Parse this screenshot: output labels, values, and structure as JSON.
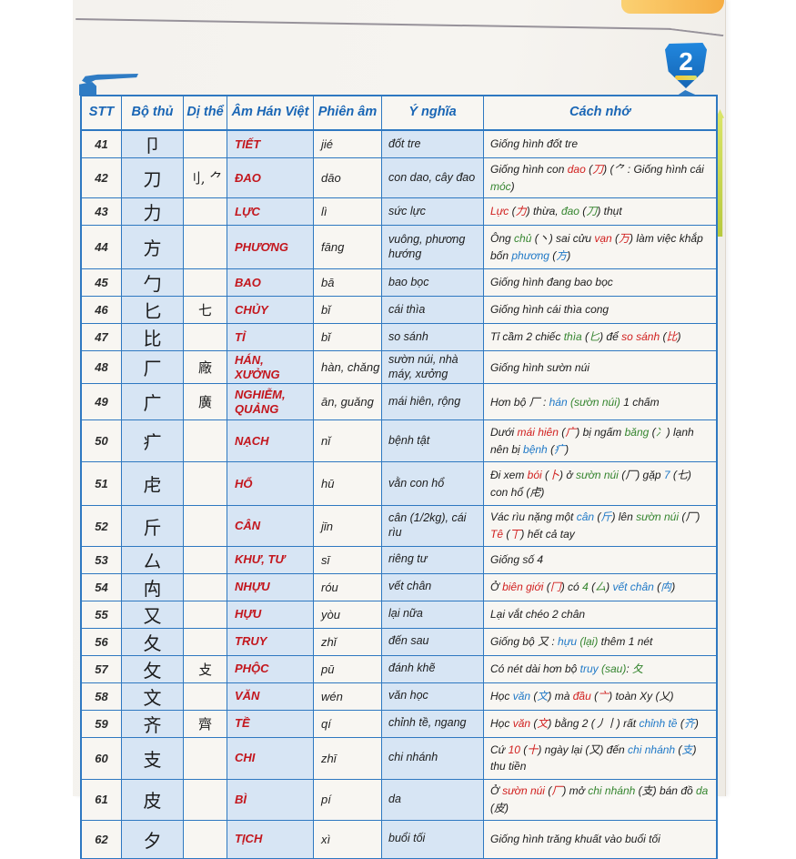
{
  "page": {
    "badge_number": "2",
    "colors": {
      "table_border": "#2e78c1",
      "header_text": "#1a66b5",
      "cell_shade": "#d7e5f4",
      "reading_red": "#c3161d",
      "memo_red": "#d1201f",
      "memo_green": "#35852f",
      "memo_blue": "#2079c7",
      "badge_blue": "#1c7fd6",
      "cover_orange": "#f6ad43",
      "arrow_green": "#b7c93e"
    }
  },
  "table": {
    "headers": [
      "STT",
      "Bộ thủ",
      "Dị thể",
      "Âm Hán Việt",
      "Phiên âm",
      "Ý nghĩa",
      "Cách nhớ"
    ],
    "rows": [
      {
        "stt": "41",
        "radical": "卩",
        "variant": "",
        "am": "TIẾT",
        "pinyin": "jié",
        "meaning": "đốt tre",
        "memo": [
          [
            "k",
            "Giống hình đốt tre"
          ]
        ]
      },
      {
        "stt": "42",
        "radical": "刀",
        "variant": "刂, ⺈",
        "am": "ĐAO",
        "pinyin": "dāo",
        "meaning": "con dao, cây đao",
        "memo": [
          [
            "k",
            "Giống hình con "
          ],
          [
            "r",
            "dao"
          ],
          [
            "k",
            " ("
          ],
          [
            "r",
            "刀"
          ],
          [
            "k",
            ") (⺈ : Giống hình cái "
          ],
          [
            "g",
            "móc"
          ],
          [
            "k",
            ")"
          ]
        ]
      },
      {
        "stt": "43",
        "radical": "力",
        "variant": "",
        "am": "LỰC",
        "pinyin": "lì",
        "meaning": "sức lực",
        "memo": [
          [
            "r",
            "Lực"
          ],
          [
            "k",
            " ("
          ],
          [
            "r",
            "力"
          ],
          [
            "k",
            ") thừa, "
          ],
          [
            "g",
            "đao"
          ],
          [
            "k",
            " ("
          ],
          [
            "g",
            "刀"
          ],
          [
            "k",
            ") thụt"
          ]
        ]
      },
      {
        "stt": "44",
        "radical": "方",
        "variant": "",
        "am": "PHƯƠNG",
        "pinyin": "fāng",
        "meaning": "vuông, phương hướng",
        "memo": [
          [
            "k",
            "Ông "
          ],
          [
            "g",
            "chủ"
          ],
          [
            "k",
            " (丶) sai cửu "
          ],
          [
            "r",
            "vạn"
          ],
          [
            "k",
            " ("
          ],
          [
            "r",
            "万"
          ],
          [
            "k",
            ") làm việc khắp bốn "
          ],
          [
            "b",
            "phương"
          ],
          [
            "k",
            " ("
          ],
          [
            "b",
            "方"
          ],
          [
            "k",
            ")"
          ]
        ]
      },
      {
        "stt": "45",
        "radical": "勹",
        "variant": "",
        "am": "BAO",
        "pinyin": "bā",
        "meaning": "bao bọc",
        "memo": [
          [
            "k",
            "Giống hình đang bao bọc"
          ]
        ]
      },
      {
        "stt": "46",
        "radical": "匕",
        "variant": "七",
        "am": "CHỦY",
        "pinyin": "bǐ",
        "meaning": "cái thìa",
        "memo": [
          [
            "k",
            "Giống hình cái thìa cong"
          ]
        ]
      },
      {
        "stt": "47",
        "radical": "比",
        "variant": "",
        "am": "TỈ",
        "pinyin": "bǐ",
        "meaning": "so sánh",
        "memo": [
          [
            "k",
            "Tỉ cầm 2 chiếc "
          ],
          [
            "g",
            "thìa"
          ],
          [
            "k",
            " ("
          ],
          [
            "g",
            "匕"
          ],
          [
            "k",
            ") để "
          ],
          [
            "r",
            "so sánh"
          ],
          [
            "k",
            " ("
          ],
          [
            "r",
            "比"
          ],
          [
            "k",
            ")"
          ]
        ]
      },
      {
        "stt": "48",
        "radical": "厂",
        "variant": "廠",
        "am": "HÁN, XƯỞNG",
        "pinyin": "hàn, chǎng",
        "meaning": "sườn núi, nhà máy, xưởng",
        "memo": [
          [
            "k",
            "Giống hình sườn núi"
          ]
        ]
      },
      {
        "stt": "49",
        "radical": "广",
        "variant": "廣",
        "am": "NGHIỄM, QUẢNG",
        "pinyin": "ān, guǎng",
        "meaning": "mái hiên, rộng",
        "memo": [
          [
            "k",
            "Hơn bộ 厂 : "
          ],
          [
            "b",
            "hán"
          ],
          [
            "k",
            " "
          ],
          [
            "g",
            "(sườn núi)"
          ],
          [
            "k",
            " 1 chấm"
          ]
        ]
      },
      {
        "stt": "50",
        "radical": "疒",
        "variant": "",
        "am": "NẠCH",
        "pinyin": "nǐ",
        "meaning": "bệnh tật",
        "memo": [
          [
            "k",
            "Dưới "
          ],
          [
            "r",
            "mái hiên"
          ],
          [
            "k",
            " ("
          ],
          [
            "r",
            "广"
          ],
          [
            "k",
            ") bị ngấm "
          ],
          [
            "g",
            "băng"
          ],
          [
            "k",
            " ("
          ],
          [
            "g",
            "冫"
          ],
          [
            "k",
            ") lạnh nên bị "
          ],
          [
            "b",
            "bệnh"
          ],
          [
            "k",
            " ("
          ],
          [
            "b",
            "疒"
          ],
          [
            "k",
            ")"
          ]
        ]
      },
      {
        "stt": "51",
        "radical": "虍",
        "variant": "",
        "am": "HỔ",
        "pinyin": "hū",
        "meaning": "vằn con hổ",
        "memo": [
          [
            "k",
            "Đi xem "
          ],
          [
            "r",
            "bói"
          ],
          [
            "k",
            " ("
          ],
          [
            "r",
            "卜"
          ],
          [
            "k",
            ") ở "
          ],
          [
            "g",
            "sườn núi"
          ],
          [
            "k",
            " (厂) gặp "
          ],
          [
            "b",
            "7"
          ],
          [
            "k",
            " (七) con hổ (虍)"
          ]
        ]
      },
      {
        "stt": "52",
        "radical": "斤",
        "variant": "",
        "am": "CÂN",
        "pinyin": "jīn",
        "meaning": "cân (1/2kg), cái rìu",
        "memo": [
          [
            "k",
            "Vác rìu nặng một "
          ],
          [
            "b",
            "cân"
          ],
          [
            "k",
            " ("
          ],
          [
            "b",
            "斤"
          ],
          [
            "k",
            ") lên "
          ],
          [
            "g",
            "sườn núi"
          ],
          [
            "k",
            " (厂) "
          ],
          [
            "r",
            "Tê"
          ],
          [
            "k",
            " ("
          ],
          [
            "r",
            "丅"
          ],
          [
            "k",
            ") hết cả tay"
          ]
        ]
      },
      {
        "stt": "53",
        "radical": "厶",
        "variant": "",
        "am": "KHƯ, TƯ",
        "pinyin": "sī",
        "meaning": "riêng tư",
        "memo": [
          [
            "k",
            "Giống số 4"
          ]
        ]
      },
      {
        "stt": "54",
        "radical": "禸",
        "variant": "",
        "am": "NHỰU",
        "pinyin": "róu",
        "meaning": "vết chân",
        "memo": [
          [
            "k",
            "Ở "
          ],
          [
            "r",
            "biên giới"
          ],
          [
            "k",
            " ("
          ],
          [
            "r",
            "冂"
          ],
          [
            "k",
            ") có "
          ],
          [
            "g",
            "4"
          ],
          [
            "k",
            " ("
          ],
          [
            "g",
            "厶"
          ],
          [
            "k",
            ") "
          ],
          [
            "b",
            "vết chân"
          ],
          [
            "k",
            " ("
          ],
          [
            "b",
            "禸"
          ],
          [
            "k",
            ")"
          ]
        ]
      },
      {
        "stt": "55",
        "radical": "又",
        "variant": "",
        "am": "HỰU",
        "pinyin": "yòu",
        "meaning": "lại nữa",
        "memo": [
          [
            "k",
            "Lại vắt chéo 2 chân"
          ]
        ]
      },
      {
        "stt": "56",
        "radical": "夂",
        "variant": "",
        "am": "TRUY",
        "pinyin": "zhǐ",
        "meaning": "đến sau",
        "memo": [
          [
            "k",
            "Giống bộ 又 : "
          ],
          [
            "b",
            "hựu"
          ],
          [
            "k",
            " "
          ],
          [
            "g",
            "(lại)"
          ],
          [
            "k",
            " thêm 1 nét"
          ]
        ]
      },
      {
        "stt": "57",
        "radical": "攵",
        "variant": "攴",
        "am": "PHỘC",
        "pinyin": "pū",
        "meaning": "đánh khẽ",
        "memo": [
          [
            "k",
            "Có nét dài hơn bộ "
          ],
          [
            "b",
            "truy"
          ],
          [
            "k",
            " "
          ],
          [
            "g",
            "(sau)"
          ],
          [
            "k",
            ": "
          ],
          [
            "g",
            "夂"
          ]
        ]
      },
      {
        "stt": "58",
        "radical": "文",
        "variant": "",
        "am": "VĂN",
        "pinyin": "wén",
        "meaning": "văn học",
        "memo": [
          [
            "k",
            "Học "
          ],
          [
            "b",
            "văn"
          ],
          [
            "k",
            " ("
          ],
          [
            "b",
            "文"
          ],
          [
            "k",
            ") mà "
          ],
          [
            "r",
            "đầu"
          ],
          [
            "k",
            " ("
          ],
          [
            "r",
            "亠"
          ],
          [
            "k",
            ") toàn Xy (乂)"
          ]
        ]
      },
      {
        "stt": "59",
        "radical": "齐",
        "variant": "齊",
        "am": "TỀ",
        "pinyin": "qí",
        "meaning": "chỉnh tề, ngang",
        "memo": [
          [
            "k",
            "Học "
          ],
          [
            "r",
            "văn"
          ],
          [
            "k",
            " ("
          ],
          [
            "r",
            "文"
          ],
          [
            "k",
            ") bằng 2 (丿丨) rất "
          ],
          [
            "b",
            "chỉnh tề"
          ],
          [
            "k",
            " ("
          ],
          [
            "b",
            "齐"
          ],
          [
            "k",
            ")"
          ]
        ]
      },
      {
        "stt": "60",
        "radical": "支",
        "variant": "",
        "am": "CHI",
        "pinyin": "zhī",
        "meaning": "chi nhánh",
        "memo": [
          [
            "k",
            "Cứ "
          ],
          [
            "r",
            "10"
          ],
          [
            "k",
            " ("
          ],
          [
            "r",
            "十"
          ],
          [
            "k",
            ") ngày lại (又) đến "
          ],
          [
            "b",
            "chi nhánh"
          ],
          [
            "k",
            " ("
          ],
          [
            "b",
            "支"
          ],
          [
            "k",
            ") thu tiền"
          ]
        ]
      },
      {
        "stt": "61",
        "radical": "皮",
        "variant": "",
        "am": "BÌ",
        "pinyin": "pí",
        "meaning": "da",
        "memo": [
          [
            "k",
            "Ở "
          ],
          [
            "r",
            "sườn núi"
          ],
          [
            "k",
            " ("
          ],
          [
            "r",
            "厂"
          ],
          [
            "k",
            ") mở "
          ],
          [
            "g",
            "chi nhánh"
          ],
          [
            "k",
            " (支) bán đồ "
          ],
          [
            "g",
            "da"
          ],
          [
            "k",
            " (皮)"
          ]
        ]
      },
      {
        "stt": "62",
        "radical": "夕",
        "variant": "",
        "am": "TỊCH",
        "pinyin": "xì",
        "meaning": "buổi tối",
        "memo": [
          [
            "k",
            "Giống hình trăng khuất vào buổi tối"
          ]
        ]
      }
    ]
  }
}
